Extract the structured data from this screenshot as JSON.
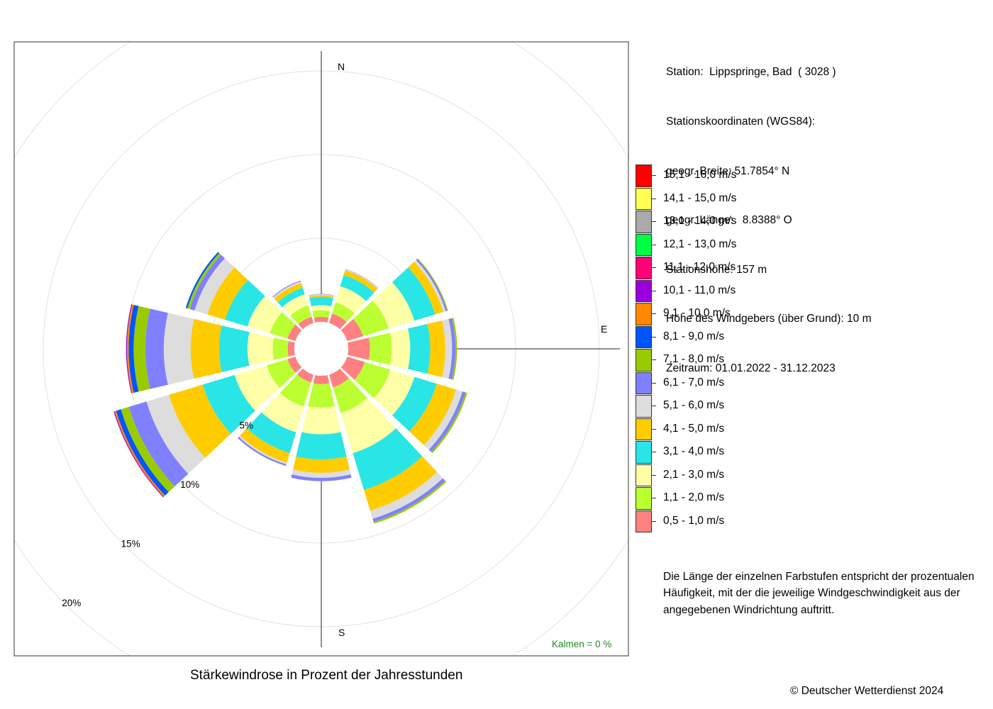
{
  "station": {
    "lines": [
      "Station:  Lippspringe, Bad  ( 3028 )",
      "Stationskoordinaten (WGS84):",
      "geogr. Breite: 51.7854° N",
      "geogr. Länge:   8.8388° O",
      "Stationshöhe: 157 m",
      "Höhe des Windgebers (über Grund): 10 m",
      "Zeitraum: 01.01.2022 - 31.12.2023"
    ]
  },
  "legend": {
    "items": [
      {
        "label": "15,1 - 16,0 m/s",
        "color": "#ff0000"
      },
      {
        "label": "14,1 - 15,0 m/s",
        "color": "#ffff55"
      },
      {
        "label": "13,1 - 14,0 m/s",
        "color": "#aaaaaa"
      },
      {
        "label": "12,1 - 13,0 m/s",
        "color": "#00ff44"
      },
      {
        "label": "11,1 - 12,0 m/s",
        "color": "#ff0077"
      },
      {
        "label": "10,1 - 11,0 m/s",
        "color": "#9900dd"
      },
      {
        "label": "9,1 - 10,0 m/s",
        "color": "#ff8800"
      },
      {
        "label": "8,1 - 9,0 m/s",
        "color": "#0055ff"
      },
      {
        "label": "7,1 - 8,0 m/s",
        "color": "#99cc00"
      },
      {
        "label": "6,1 - 7,0 m/s",
        "color": "#8080ff"
      },
      {
        "label": "5,1 - 6,0 m/s",
        "color": "#dddddd"
      },
      {
        "label": "4,1 - 5,0 m/s",
        "color": "#ffcc00"
      },
      {
        "label": "3,1 - 4,0 m/s",
        "color": "#2ae5e5"
      },
      {
        "label": "2,1 - 3,0 m/s",
        "color": "#ffffa8"
      },
      {
        "label": "1,1 - 2,0 m/s",
        "color": "#bbff33"
      },
      {
        "label": "0,5 - 1,0 m/s",
        "color": "#ff8080"
      }
    ]
  },
  "note": {
    "lines": [
      "Die Länge der einzelnen Farbstufen entspricht der prozentualen",
      "Häufigkeit, mit der die jeweilige Windgeschwindigkeit aus der",
      "angegebenen Windrichtung auftritt."
    ]
  },
  "caption": "Stärkewindrose in Prozent der Jahresstunden",
  "copyright": "© Deutscher Wetterdienst  2024",
  "calm_label": "Kalmen  =  0 %",
  "chart_data": {
    "type": "wind-rose",
    "title": "Stärkewindrose in Prozent der Jahresstunden",
    "radial_unit": "%",
    "radial_ticks": [
      5,
      10,
      15,
      20
    ],
    "radial_tick_labels": [
      "5%",
      "10%",
      "15%",
      "20%"
    ],
    "compass_labels": {
      "N": "N",
      "E": "E",
      "S": "S"
    },
    "calm_percent": 0,
    "speed_classes": [
      "0,5 - 1,0 m/s",
      "1,1 - 2,0 m/s",
      "2,1 - 3,0 m/s",
      "3,1 - 4,0 m/s",
      "4,1 - 5,0 m/s",
      "5,1 - 6,0 m/s",
      "6,1 - 7,0 m/s",
      "7,1 - 8,0 m/s",
      "8,1 - 9,0 m/s",
      "9,1 - 10,0 m/s",
      "10,1 - 11,0 m/s",
      "11,1 - 12,0 m/s",
      "12,1 - 13,0 m/s",
      "13,1 - 14,0 m/s",
      "14,1 - 15,0 m/s",
      "15,1 - 16,0 m/s"
    ],
    "directions_deg": [
      0,
      30,
      60,
      90,
      120,
      150,
      180,
      210,
      240,
      270,
      300,
      330
    ],
    "series": [
      {
        "direction": 0,
        "values": [
          0.3,
          0.4,
          0.3,
          0.5,
          0.1,
          0.05,
          0.02
        ]
      },
      {
        "direction": 30,
        "values": [
          0.6,
          0.7,
          1.0,
          0.7,
          0.3,
          0.05,
          0.02
        ]
      },
      {
        "direction": 60,
        "values": [
          1.0,
          1.6,
          1.6,
          1.3,
          0.5,
          0.15,
          0.1,
          0.05
        ]
      },
      {
        "direction": 90,
        "values": [
          1.3,
          1.3,
          1.1,
          1.2,
          0.9,
          0.4,
          0.2,
          0.1
        ]
      },
      {
        "direction": 120,
        "values": [
          1.1,
          1.6,
          1.5,
          1.4,
          1.2,
          0.4,
          0.2,
          0.1
        ]
      },
      {
        "direction": 150,
        "values": [
          0.8,
          1.6,
          2.5,
          2.3,
          1.3,
          0.5,
          0.2,
          0.1
        ]
      },
      {
        "direction": 180,
        "values": [
          0.5,
          1.4,
          1.6,
          1.5,
          0.8,
          0.3,
          0.2
        ]
      },
      {
        "direction": 210,
        "values": [
          0.5,
          1.5,
          1.6,
          1.3,
          0.6,
          0.1,
          0.1
        ]
      },
      {
        "direction": 240,
        "values": [
          0.5,
          1.3,
          2.0,
          2.0,
          2.1,
          1.4,
          1.1,
          0.5,
          0.3,
          0.1,
          0.05
        ]
      },
      {
        "direction": 270,
        "values": [
          0.4,
          0.9,
          1.5,
          1.7,
          1.7,
          1.6,
          1.1,
          0.7,
          0.3,
          0.1,
          0.05
        ]
      },
      {
        "direction": 300,
        "values": [
          0.5,
          1.1,
          1.4,
          1.4,
          1.1,
          0.8,
          0.3,
          0.15,
          0.1
        ]
      },
      {
        "direction": 330,
        "values": [
          0.4,
          0.7,
          0.7,
          0.4,
          0.3,
          0.1,
          0.05
        ]
      }
    ]
  }
}
